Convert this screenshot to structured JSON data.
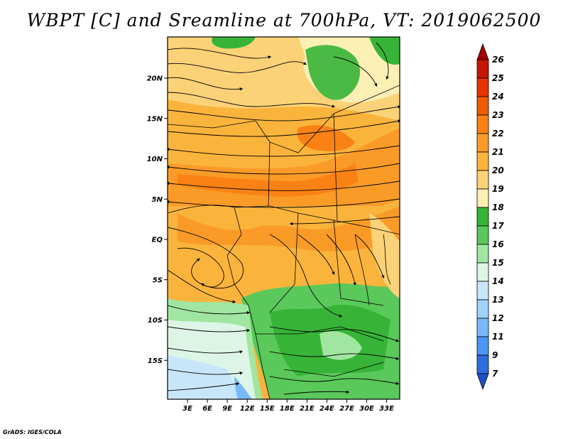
{
  "title": "WBPT [C] and Sreamline at 700hPa, VT: 2019062500",
  "footer": "GrADS: IGES/COLA",
  "map": {
    "lon_range": [
      0,
      35
    ],
    "lat_range": [
      -20,
      24
    ],
    "lon_ticks": [
      "3E",
      "6E",
      "9E",
      "12E",
      "15E",
      "18E",
      "21E",
      "24E",
      "27E",
      "30E",
      "33E"
    ],
    "lat_ticks": [
      "20N",
      "15N",
      "10N",
      "5N",
      "EQ",
      "5S",
      "10S",
      "15S"
    ]
  },
  "colorbar": {
    "labels": [
      "26",
      "25",
      "24",
      "23",
      "22",
      "21",
      "20",
      "19",
      "18",
      "17",
      "16",
      "15",
      "14",
      "13",
      "12",
      "11",
      "9",
      "7"
    ],
    "colors": [
      "#a50000",
      "#c81400",
      "#e63200",
      "#f05a00",
      "#fa8214",
      "#fa9b28",
      "#fab43c",
      "#fcd278",
      "#fcefb4",
      "#37b437",
      "#5ac85a",
      "#a0e6a0",
      "#dcf5e6",
      "#c8e6fa",
      "#a0d2fa",
      "#78b9fa",
      "#4b96f5",
      "#2d6edc",
      "#1e50c8"
    ]
  }
}
